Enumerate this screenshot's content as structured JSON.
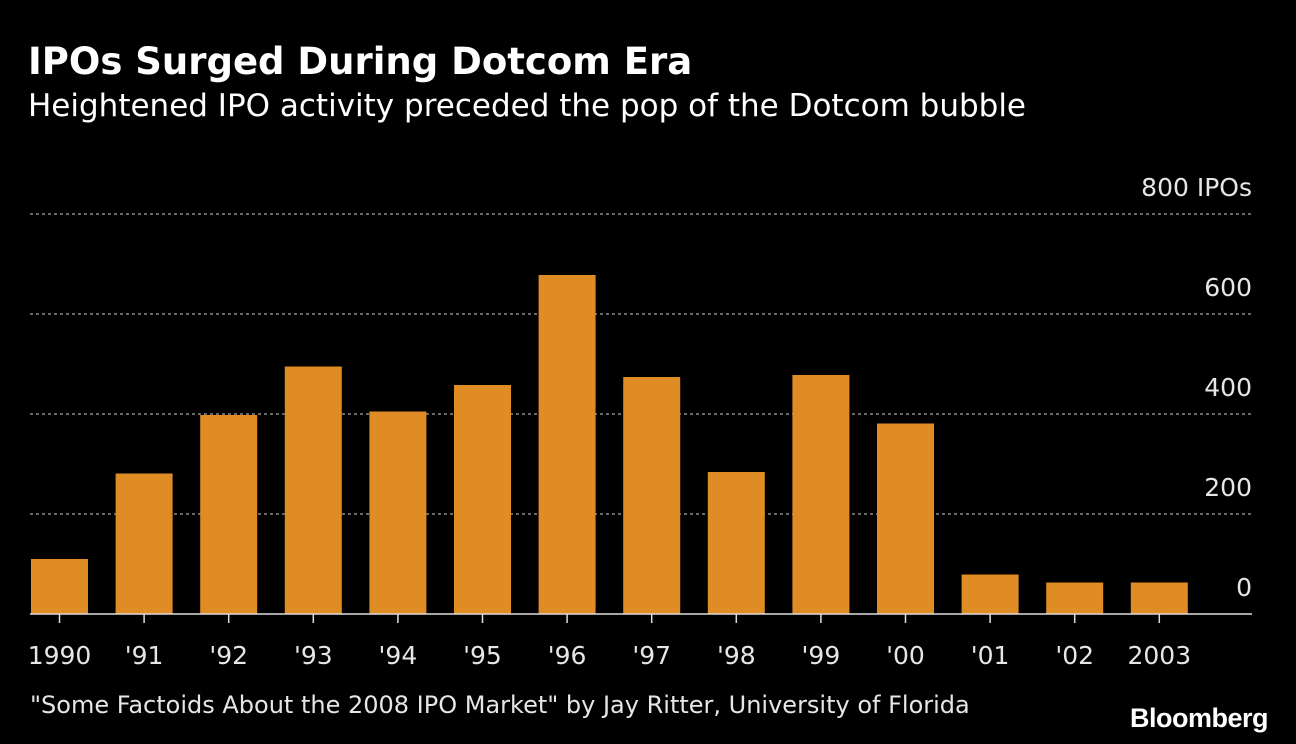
{
  "header": {
    "title": "IPOs Surged During Dotcom Era",
    "subtitle": "Heightened IPO activity preceded the pop of the Dotcom bubble"
  },
  "footer": {
    "source": "\"Some Factoids About the 2008 IPO Market\" by Jay Ritter, University of Florida",
    "logo": "Bloomberg"
  },
  "colors": {
    "background": "#000000",
    "bar": "#df8c24",
    "grid": "#8a8a8a",
    "text": "#e6e6e6"
  },
  "chart_data": {
    "type": "bar",
    "title": "IPOs Surged During Dotcom Era",
    "subtitle": "Heightened IPO activity preceded the pop of the Dotcom bubble",
    "xlabel": "",
    "ylabel": "",
    "categories": [
      "1990",
      "'91",
      "'92",
      "'93",
      "'94",
      "'95",
      "'96",
      "'97",
      "'98",
      "'99",
      "'00",
      "'01",
      "'02",
      "2003"
    ],
    "values": [
      110,
      281,
      398,
      495,
      405,
      458,
      678,
      474,
      284,
      478,
      381,
      79,
      63,
      63
    ],
    "ylim": [
      0,
      800
    ],
    "yticks": [
      0,
      200,
      400,
      600,
      800
    ],
    "ytick_labels": [
      "0",
      "200",
      "400",
      "600",
      "800 IPOs"
    ],
    "grid": true,
    "legend": "none"
  }
}
